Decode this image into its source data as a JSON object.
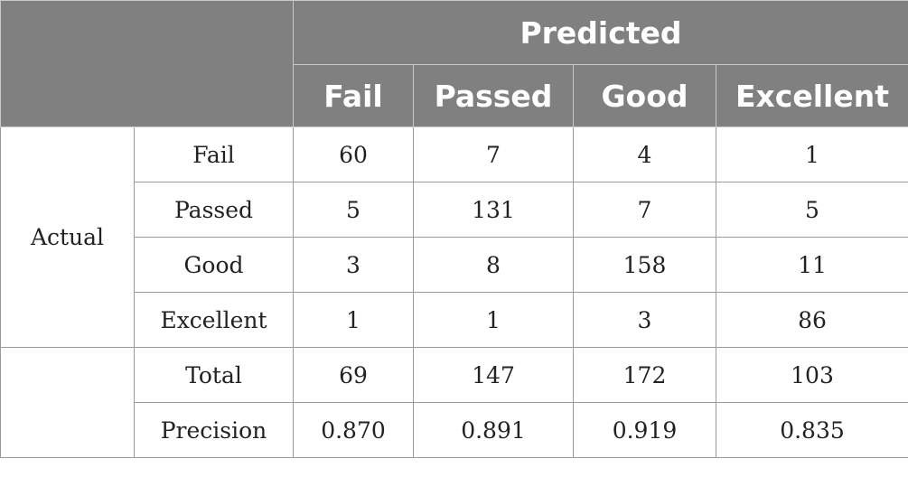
{
  "header": {
    "predicted_label": "Predicted",
    "columns": [
      "Fail",
      "Passed",
      "Good",
      "Excellent"
    ]
  },
  "actual_label": "Actual",
  "rows": [
    {
      "label": "Fail",
      "values": [
        "60",
        "7",
        "4",
        "1"
      ]
    },
    {
      "label": "Passed",
      "values": [
        "5",
        "131",
        "7",
        "5"
      ]
    },
    {
      "label": "Good",
      "values": [
        "3",
        "8",
        "158",
        "11"
      ]
    },
    {
      "label": "Excellent",
      "values": [
        "1",
        "1",
        "3",
        "86"
      ]
    }
  ],
  "summary": [
    {
      "label": "Total",
      "values": [
        "69",
        "147",
        "172",
        "103"
      ]
    },
    {
      "label": "Precision",
      "values": [
        "0.870",
        "0.891",
        "0.919",
        "0.835"
      ]
    }
  ],
  "colors": {
    "header_bg": "#808080",
    "header_text": "#ffffff"
  }
}
